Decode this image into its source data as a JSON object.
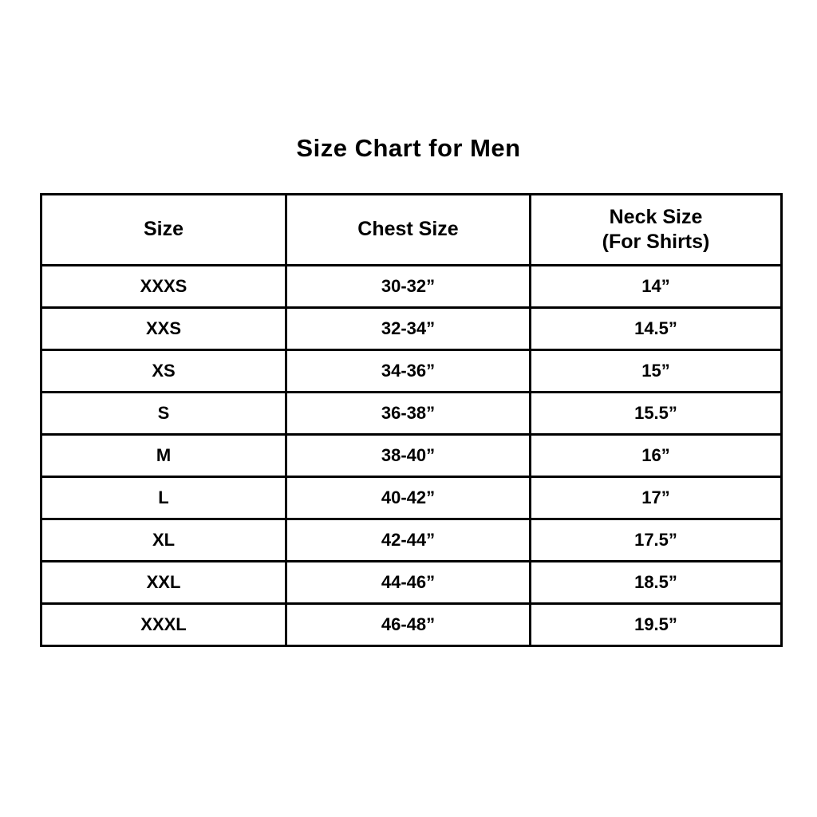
{
  "page": {
    "title": "Size Chart for Men"
  },
  "table": {
    "columns": [
      "Size",
      "Chest Size",
      "Neck Size\n(For Shirts)"
    ],
    "rows": [
      {
        "size": "XXXS",
        "chest": "30-32”",
        "neck": "14”"
      },
      {
        "size": "XXS",
        "chest": "32-34”",
        "neck": "14.5”"
      },
      {
        "size": "XS",
        "chest": "34-36”",
        "neck": "15”"
      },
      {
        "size": "S",
        "chest": "36-38”",
        "neck": "15.5”"
      },
      {
        "size": "M",
        "chest": "38-40”",
        "neck": "16”"
      },
      {
        "size": "L",
        "chest": "40-42”",
        "neck": "17”"
      },
      {
        "size": "XL",
        "chest": "42-44”",
        "neck": "17.5”"
      },
      {
        "size": "XXL",
        "chest": "44-46”",
        "neck": "18.5”"
      },
      {
        "size": "XXXL",
        "chest": "46-48”",
        "neck": "19.5”"
      }
    ]
  },
  "chart_data": {
    "type": "table",
    "title": "Size Chart for Men",
    "columns": [
      "Size",
      "Chest Size",
      "Neck Size (For Shirts)"
    ],
    "rows": [
      [
        "XXXS",
        "30-32”",
        "14”"
      ],
      [
        "XXS",
        "32-34”",
        "14.5”"
      ],
      [
        "XS",
        "34-36”",
        "15”"
      ],
      [
        "S",
        "36-38”",
        "15.5”"
      ],
      [
        "M",
        "38-40”",
        "16”"
      ],
      [
        "L",
        "40-42”",
        "17”"
      ],
      [
        "XL",
        "42-44”",
        "17.5”"
      ],
      [
        "XXL",
        "44-46”",
        "18.5”"
      ],
      [
        "XXXL",
        "46-48”",
        "19.5”"
      ]
    ],
    "layout": {
      "text_color": "#000000",
      "border_color": "#000000",
      "background_color": "#ffffff"
    }
  }
}
